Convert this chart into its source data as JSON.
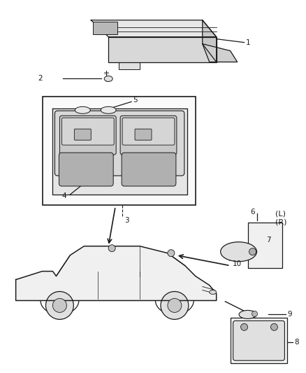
{
  "bg_color": "#ffffff",
  "lc": "#1a1a1a",
  "fig_w": 4.38,
  "fig_h": 5.33,
  "dpi": 100
}
